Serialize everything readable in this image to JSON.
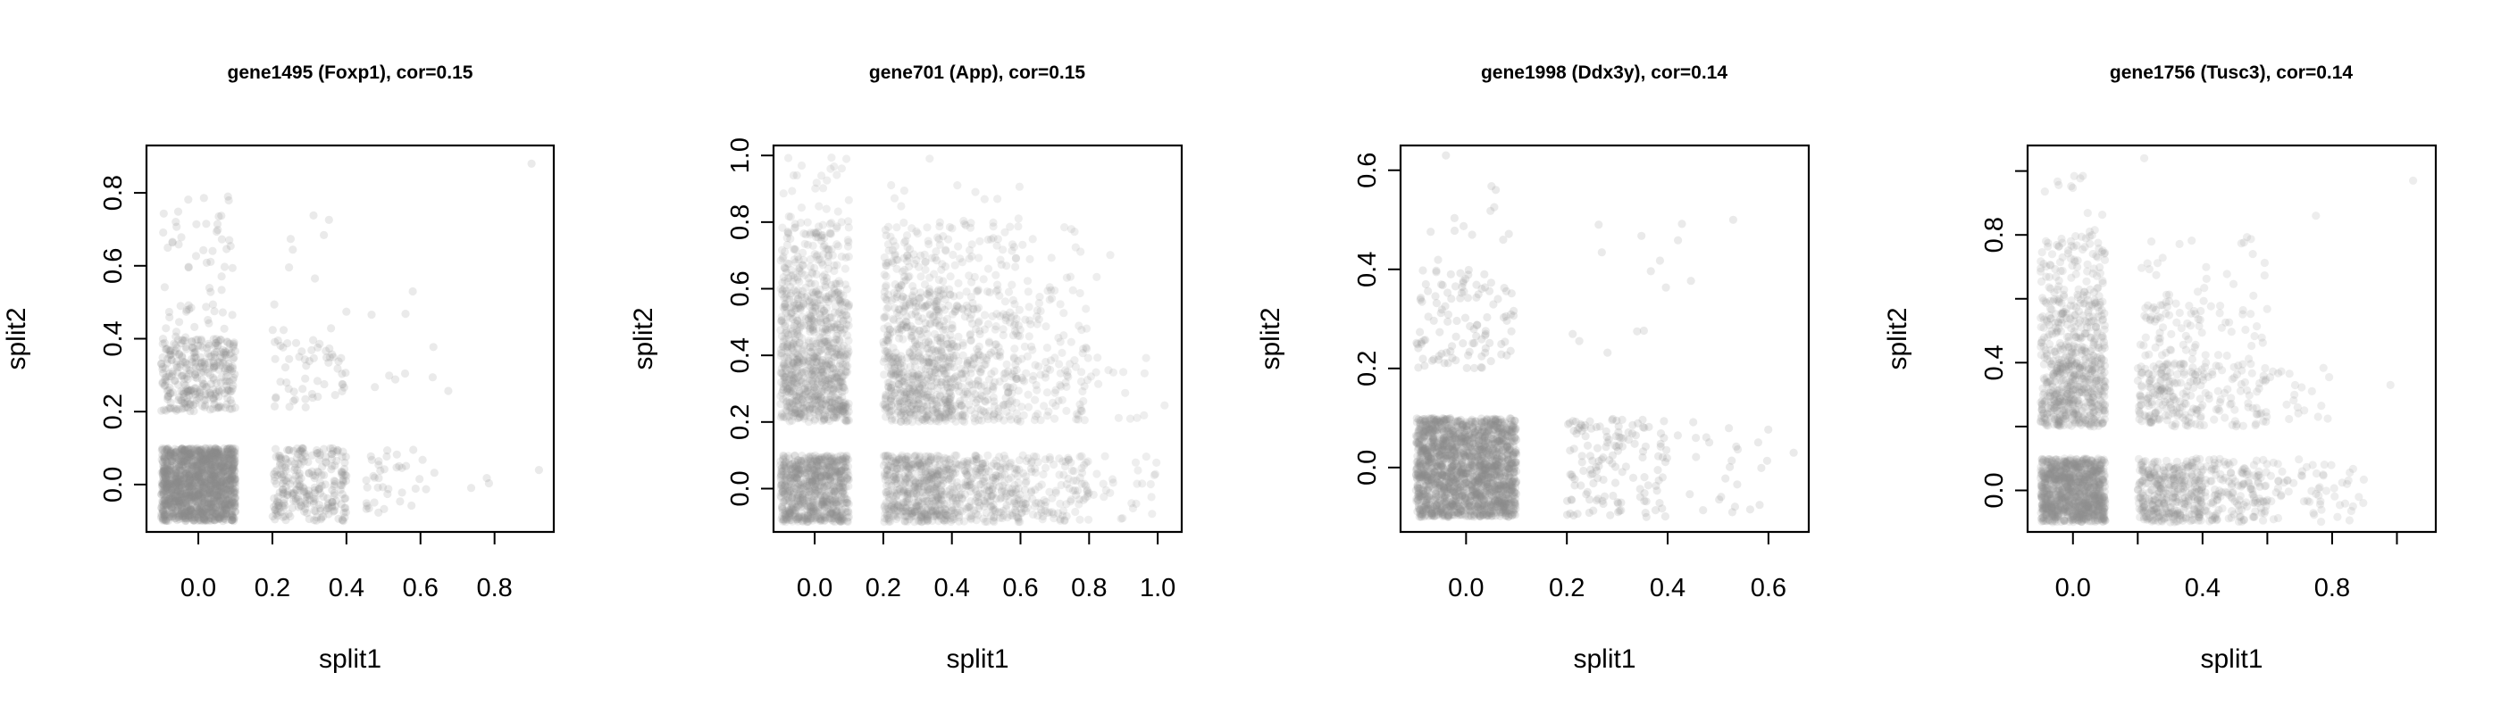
{
  "chart_data": [
    {
      "type": "scatter",
      "title": "gene1495 (Foxp1), cor=0.15",
      "xlabel": "split1",
      "ylabel": "split2",
      "xlim": [
        -0.14,
        0.96
      ],
      "ylim": [
        -0.13,
        0.93
      ],
      "xticks": [
        0.0,
        0.2,
        0.4,
        0.6,
        0.8
      ],
      "xtick_labels": [
        "0.0",
        "0.2",
        "0.4",
        "0.6",
        "0.8"
      ],
      "yticks": [
        0.0,
        0.2,
        0.4,
        0.6,
        0.8
      ],
      "ytick_labels": [
        "0.0",
        "0.2",
        "0.4",
        "0.6",
        "0.8"
      ],
      "point_color": "#8c8c8c",
      "point_opacity": 0.18,
      "seed": 11,
      "clusters": [
        {
          "x": [
            -0.1,
            0.1
          ],
          "y": [
            -0.1,
            0.1
          ],
          "n": 1500
        },
        {
          "x": [
            0.2,
            0.4
          ],
          "y": [
            -0.1,
            0.1
          ],
          "n": 260
        },
        {
          "x": [
            0.45,
            0.6
          ],
          "y": [
            -0.1,
            0.1
          ],
          "n": 35
        },
        {
          "x": [
            0.6,
            0.9
          ],
          "y": [
            -0.05,
            0.1
          ],
          "n": 6
        },
        {
          "x": [
            -0.1,
            0.1
          ],
          "y": [
            0.2,
            0.4
          ],
          "n": 320
        },
        {
          "x": [
            -0.1,
            0.1
          ],
          "y": [
            0.4,
            0.8
          ],
          "n": 60
        },
        {
          "x": [
            0.2,
            0.4
          ],
          "y": [
            0.2,
            0.4
          ],
          "n": 55
        },
        {
          "x": [
            0.2,
            0.4
          ],
          "y": [
            0.4,
            0.75
          ],
          "n": 12
        },
        {
          "x": [
            0.45,
            0.7
          ],
          "y": [
            0.2,
            0.6
          ],
          "n": 10
        }
      ],
      "extra_points": [
        [
          0.9,
          0.88
        ],
        [
          0.92,
          0.04
        ],
        [
          0.08,
          0.79
        ]
      ]
    },
    {
      "type": "scatter",
      "title": "gene701 (App), cor=0.15",
      "xlabel": "split1",
      "ylabel": "split2",
      "xlim": [
        -0.12,
        1.07
      ],
      "ylim": [
        -0.13,
        1.03
      ],
      "xticks": [
        0.0,
        0.2,
        0.4,
        0.6,
        0.8,
        1.0
      ],
      "xtick_labels": [
        "0.0",
        "0.2",
        "0.4",
        "0.6",
        "0.8",
        "1.0"
      ],
      "yticks": [
        0.0,
        0.2,
        0.4,
        0.6,
        0.8,
        1.0
      ],
      "ytick_labels": [
        "0.0",
        "0.2",
        "0.4",
        "0.6",
        "0.8",
        "1.0"
      ],
      "point_color": "#8c8c8c",
      "point_opacity": 0.15,
      "seed": 23,
      "clusters": [
        {
          "x": [
            -0.1,
            0.1
          ],
          "y": [
            -0.1,
            0.1
          ],
          "n": 800
        },
        {
          "x": [
            0.2,
            0.4
          ],
          "y": [
            -0.1,
            0.1
          ],
          "n": 500
        },
        {
          "x": [
            0.4,
            0.6
          ],
          "y": [
            -0.1,
            0.1
          ],
          "n": 260
        },
        {
          "x": [
            0.6,
            0.8
          ],
          "y": [
            -0.1,
            0.1
          ],
          "n": 120
        },
        {
          "x": [
            0.8,
            1.0
          ],
          "y": [
            -0.1,
            0.1
          ],
          "n": 25
        },
        {
          "x": [
            -0.1,
            0.1
          ],
          "y": [
            0.2,
            0.4
          ],
          "n": 500
        },
        {
          "x": [
            0.2,
            0.4
          ],
          "y": [
            0.2,
            0.4
          ],
          "n": 380
        },
        {
          "x": [
            0.4,
            0.6
          ],
          "y": [
            0.2,
            0.4
          ],
          "n": 170
        },
        {
          "x": [
            0.6,
            0.8
          ],
          "y": [
            0.2,
            0.4
          ],
          "n": 70
        },
        {
          "x": [
            0.8,
            1.0
          ],
          "y": [
            0.2,
            0.4
          ],
          "n": 12
        },
        {
          "x": [
            -0.1,
            0.1
          ],
          "y": [
            0.4,
            0.6
          ],
          "n": 320
        },
        {
          "x": [
            0.2,
            0.4
          ],
          "y": [
            0.4,
            0.6
          ],
          "n": 210
        },
        {
          "x": [
            0.4,
            0.6
          ],
          "y": [
            0.4,
            0.6
          ],
          "n": 100
        },
        {
          "x": [
            0.6,
            0.8
          ],
          "y": [
            0.4,
            0.6
          ],
          "n": 40
        },
        {
          "x": [
            -0.1,
            0.1
          ],
          "y": [
            0.6,
            0.8
          ],
          "n": 140
        },
        {
          "x": [
            0.2,
            0.4
          ],
          "y": [
            0.6,
            0.8
          ],
          "n": 90
        },
        {
          "x": [
            0.4,
            0.6
          ],
          "y": [
            0.6,
            0.8
          ],
          "n": 45
        },
        {
          "x": [
            0.6,
            0.9
          ],
          "y": [
            0.6,
            0.8
          ],
          "n": 15
        },
        {
          "x": [
            -0.1,
            0.1
          ],
          "y": [
            0.8,
            1.0
          ],
          "n": 25
        },
        {
          "x": [
            0.2,
            0.6
          ],
          "y": [
            0.8,
            1.0
          ],
          "n": 12
        }
      ],
      "extra_points": [
        [
          0.96,
          0.22
        ],
        [
          1.02,
          0.25
        ],
        [
          0.92,
          0.21
        ]
      ]
    },
    {
      "type": "scatter",
      "title": "gene1998 (Ddx3y), cor=0.14",
      "xlabel": "split1",
      "ylabel": "split2",
      "xlim": [
        -0.13,
        0.68
      ],
      "ylim": [
        -0.13,
        0.65
      ],
      "xticks": [
        0.0,
        0.2,
        0.4,
        0.6
      ],
      "xtick_labels": [
        "0.0",
        "0.2",
        "0.4",
        "0.6"
      ],
      "yticks": [
        0.0,
        0.2,
        0.4,
        0.6
      ],
      "ytick_labels": [
        "0.0",
        "0.2",
        "0.4",
        "0.6"
      ],
      "point_color": "#8c8c8c",
      "point_opacity": 0.18,
      "seed": 37,
      "clusters": [
        {
          "x": [
            -0.1,
            0.1
          ],
          "y": [
            -0.1,
            0.1
          ],
          "n": 1800
        },
        {
          "x": [
            0.2,
            0.4
          ],
          "y": [
            -0.1,
            0.1
          ],
          "n": 140
        },
        {
          "x": [
            0.4,
            0.6
          ],
          "y": [
            -0.1,
            0.1
          ],
          "n": 25
        },
        {
          "x": [
            -0.1,
            0.1
          ],
          "y": [
            0.2,
            0.4
          ],
          "n": 110
        },
        {
          "x": [
            -0.1,
            0.1
          ],
          "y": [
            0.4,
            0.6
          ],
          "n": 12
        },
        {
          "x": [
            0.2,
            0.45
          ],
          "y": [
            0.2,
            0.5
          ],
          "n": 14
        }
      ],
      "extra_points": [
        [
          0.53,
          0.5
        ],
        [
          0.65,
          0.03
        ],
        [
          -0.04,
          0.63
        ]
      ]
    },
    {
      "type": "scatter",
      "title": "gene1756 (Tusc3), cor=0.14",
      "xlabel": "split1",
      "ylabel": "split2",
      "xlim": [
        -0.14,
        1.12
      ],
      "ylim": [
        -0.13,
        1.08
      ],
      "xticks": [
        0.0,
        0.2,
        0.4,
        0.6,
        0.8,
        1.0
      ],
      "xtick_labels": [
        "0.0",
        "",
        "0.4",
        "",
        "0.8",
        ""
      ],
      "yticks": [
        0.0,
        0.2,
        0.4,
        0.6,
        0.8,
        1.0
      ],
      "ytick_labels": [
        "0.0",
        "",
        "0.4",
        "",
        "0.8",
        ""
      ],
      "point_color": "#8c8c8c",
      "point_opacity": 0.16,
      "seed": 53,
      "clusters": [
        {
          "x": [
            -0.1,
            0.1
          ],
          "y": [
            -0.1,
            0.1
          ],
          "n": 1100
        },
        {
          "x": [
            0.2,
            0.4
          ],
          "y": [
            -0.1,
            0.1
          ],
          "n": 360
        },
        {
          "x": [
            0.4,
            0.6
          ],
          "y": [
            -0.1,
            0.1
          ],
          "n": 150
        },
        {
          "x": [
            0.6,
            0.9
          ],
          "y": [
            -0.1,
            0.1
          ],
          "n": 60
        },
        {
          "x": [
            -0.1,
            0.1
          ],
          "y": [
            0.2,
            0.4
          ],
          "n": 420
        },
        {
          "x": [
            0.2,
            0.4
          ],
          "y": [
            0.2,
            0.4
          ],
          "n": 180
        },
        {
          "x": [
            0.4,
            0.6
          ],
          "y": [
            0.2,
            0.4
          ],
          "n": 70
        },
        {
          "x": [
            0.6,
            0.8
          ],
          "y": [
            0.2,
            0.4
          ],
          "n": 20
        },
        {
          "x": [
            -0.1,
            0.1
          ],
          "y": [
            0.4,
            0.6
          ],
          "n": 210
        },
        {
          "x": [
            0.2,
            0.4
          ],
          "y": [
            0.4,
            0.6
          ],
          "n": 60
        },
        {
          "x": [
            0.4,
            0.6
          ],
          "y": [
            0.4,
            0.6
          ],
          "n": 22
        },
        {
          "x": [
            -0.1,
            0.1
          ],
          "y": [
            0.6,
            0.8
          ],
          "n": 90
        },
        {
          "x": [
            0.2,
            0.6
          ],
          "y": [
            0.6,
            0.8
          ],
          "n": 25
        },
        {
          "x": [
            -0.1,
            0.1
          ],
          "y": [
            0.8,
            1.0
          ],
          "n": 12
        }
      ],
      "extra_points": [
        [
          1.05,
          0.97
        ],
        [
          0.98,
          0.33
        ],
        [
          0.22,
          1.04
        ],
        [
          0.75,
          0.86
        ]
      ]
    }
  ]
}
